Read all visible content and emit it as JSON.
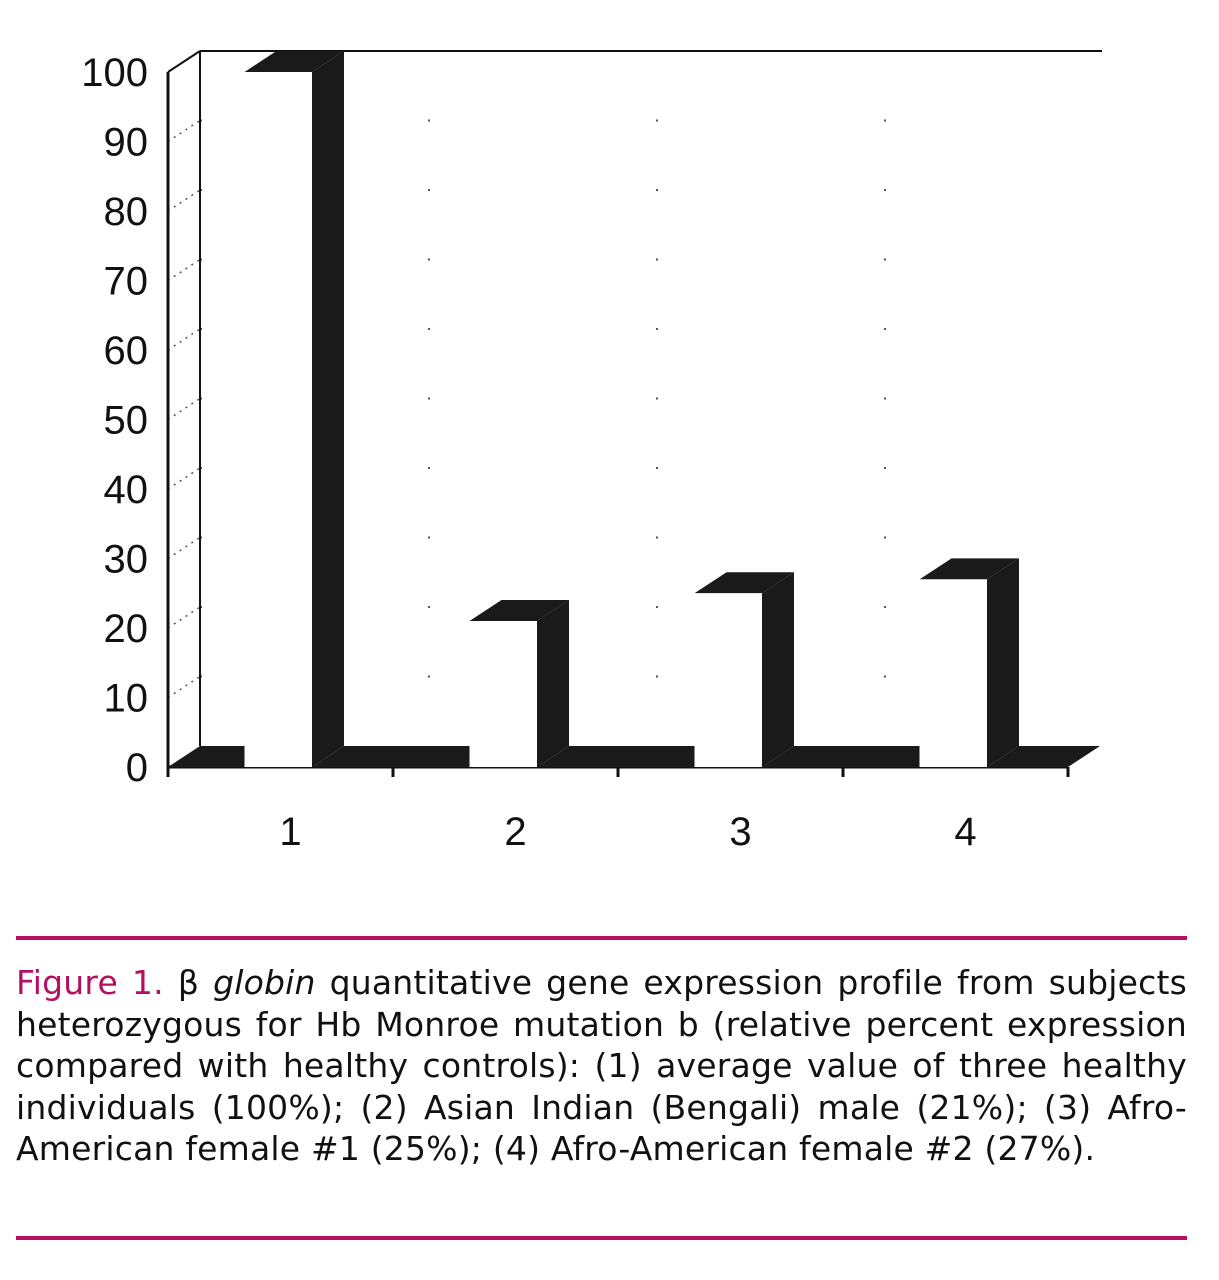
{
  "colors": {
    "bar": "#1a1a1a",
    "accent": "#b5105f",
    "grid": "#555555"
  },
  "chart_data": {
    "type": "bar",
    "style": "3d-outline",
    "categories": [
      "1",
      "2",
      "3",
      "4"
    ],
    "values": [
      100,
      21,
      25,
      27
    ],
    "ylim": [
      0,
      100
    ],
    "yticks": [
      "0",
      "10",
      "20",
      "30",
      "40",
      "50",
      "60",
      "70",
      "80",
      "90",
      "100"
    ],
    "grid": "dotted",
    "title": "",
    "xlabel": "",
    "ylabel": ""
  },
  "caption": {
    "figure_label": "Figure 1.",
    "beta": "β",
    "gene": "globin",
    "text": "quantitative gene expression profile from subjects heterozygous for Hb Monroe mutation b (relative percent expression compared with healthy controls): (1) average value of three healthy individuals (100%); (2) Asian Indian (Bengali) male (21%); (3) Afro-American female #1 (25%); (4) Afro-American female #2 (27%)."
  }
}
